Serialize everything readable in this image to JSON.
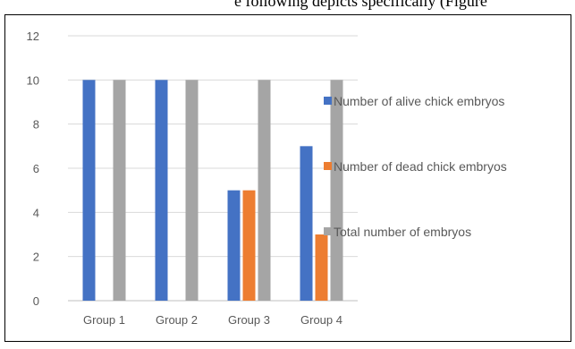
{
  "top_text": "e following depicts specifically (Figure",
  "chart_data": {
    "type": "bar",
    "categories": [
      "Group 1",
      "Group 2",
      "Group 3",
      "Group 4"
    ],
    "series": [
      {
        "name": "Number of alive chick embryos",
        "values": [
          10,
          10,
          5,
          7
        ],
        "color": "#4472C4"
      },
      {
        "name": "Number of dead chick embryos",
        "values": [
          0,
          0,
          5,
          3
        ],
        "color": "#ED7D31"
      },
      {
        "name": "Total number of embryos",
        "values": [
          10,
          10,
          10,
          10
        ],
        "color": "#A5A5A5"
      }
    ],
    "ylim": [
      0,
      12
    ],
    "yticks": [
      "0",
      "2",
      "4",
      "6",
      "8",
      "10",
      "12"
    ],
    "grid": true,
    "legend_position": "right"
  }
}
